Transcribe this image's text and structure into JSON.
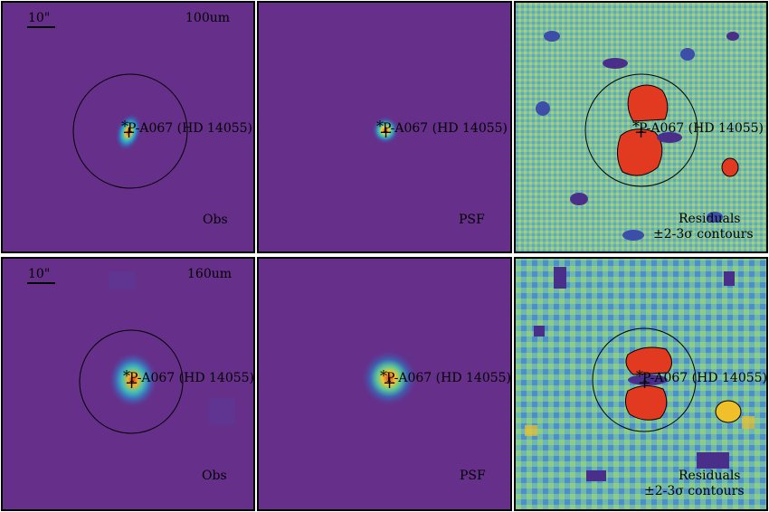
{
  "source_label": "P-A067 (HD 14055)",
  "scale_bar_label": "10\"",
  "colors": {
    "background_purple": "#652f8a",
    "residual_base": "#79be9a",
    "contour": "#000000",
    "frame": "#000000"
  },
  "rows": [
    {
      "band": "100um",
      "panels": [
        {
          "type": "observed",
          "label": "Obs"
        },
        {
          "type": "psf",
          "label": "PSF"
        },
        {
          "type": "residual",
          "label": "Residuals",
          "sublabel": "±2-3σ contours"
        }
      ]
    },
    {
      "band": "160um",
      "panels": [
        {
          "type": "observed",
          "label": "Obs"
        },
        {
          "type": "psf",
          "label": "PSF"
        },
        {
          "type": "residual",
          "label": "Residuals",
          "sublabel": "±2-3σ contours"
        }
      ]
    }
  ],
  "icons": [
    "asterisk-marker-icon",
    "plus-marker-icon"
  ]
}
